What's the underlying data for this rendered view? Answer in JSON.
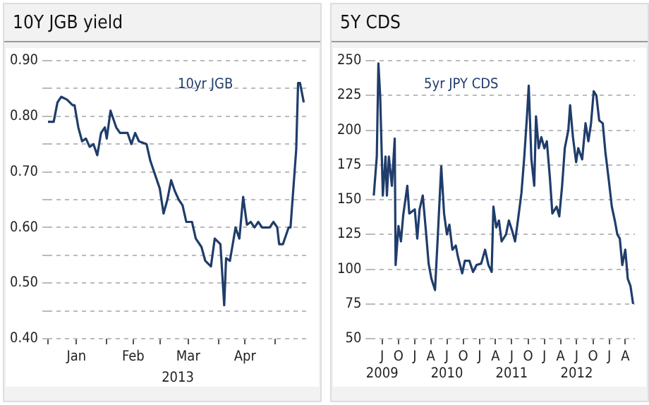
{
  "chart_data": [
    {
      "type": "line",
      "title": "10Y JGB yield",
      "xlabel": "2013",
      "grid": "y",
      "marker": "none",
      "line_style": "solid",
      "xlim": [
        "2013-01-01",
        "2013-05-18"
      ],
      "xticks": [
        {
          "value": "2013-01-01",
          "label": null
        },
        {
          "value": "2013-01-16",
          "label": "Jan"
        },
        {
          "value": "2013-02-01",
          "label": null
        },
        {
          "value": "2013-02-15",
          "label": "Feb"
        },
        {
          "value": "2013-03-01",
          "label": null
        },
        {
          "value": "2013-03-16",
          "label": "Mar"
        },
        {
          "value": "2013-04-01",
          "label": null
        },
        {
          "value": "2013-04-15",
          "label": "Apr"
        },
        {
          "value": "2013-05-01",
          "label": null
        }
      ],
      "ylim": [
        0.4,
        0.9
      ],
      "yticks": [
        {
          "value": 0.4,
          "label": "0.40"
        },
        {
          "value": 0.45,
          "label": null
        },
        {
          "value": 0.5,
          "label": "0.50"
        },
        {
          "value": 0.55,
          "label": null
        },
        {
          "value": 0.6,
          "label": "0.60"
        },
        {
          "value": 0.65,
          "label": null
        },
        {
          "value": 0.7,
          "label": "0.70"
        },
        {
          "value": 0.75,
          "label": null
        },
        {
          "value": 0.8,
          "label": "0.80"
        },
        {
          "value": 0.85,
          "label": null
        },
        {
          "value": 0.9,
          "label": "0.90"
        }
      ],
      "x": [
        "2013-01-01",
        "2013-01-04",
        "2013-01-06",
        "2013-01-08",
        "2013-01-11",
        "2013-01-14",
        "2013-01-15",
        "2013-01-17",
        "2013-01-19",
        "2013-01-21",
        "2013-01-23",
        "2013-01-25",
        "2013-01-27",
        "2013-01-29",
        "2013-01-31",
        "2013-02-01",
        "2013-02-03",
        "2013-02-06",
        "2013-02-08",
        "2013-02-12",
        "2013-02-14",
        "2013-02-16",
        "2013-02-18",
        "2013-02-22",
        "2013-02-24",
        "2013-02-28",
        "2013-03-01",
        "2013-03-03",
        "2013-03-05",
        "2013-03-07",
        "2013-03-09",
        "2013-03-11",
        "2013-03-13",
        "2013-03-15",
        "2013-03-18",
        "2013-03-20",
        "2013-03-23",
        "2013-03-25",
        "2013-03-28",
        "2013-03-30",
        "2013-04-02",
        "2013-04-04",
        "2013-04-05",
        "2013-04-07",
        "2013-04-10",
        "2013-04-12",
        "2013-04-14",
        "2013-04-16",
        "2013-04-18",
        "2013-04-20",
        "2013-04-22",
        "2013-04-24",
        "2013-04-26",
        "2013-04-28",
        "2013-04-30",
        "2013-05-02",
        "2013-05-03",
        "2013-05-05",
        "2013-05-08",
        "2013-05-09",
        "2013-05-12",
        "2013-05-13",
        "2013-05-14",
        "2013-05-16"
      ],
      "series": [
        {
          "name": "10yr JGB",
          "color": "#1f3d6b",
          "values": [
            0.79,
            0.79,
            0.825,
            0.835,
            0.83,
            0.82,
            0.82,
            0.78,
            0.755,
            0.76,
            0.745,
            0.75,
            0.73,
            0.77,
            0.78,
            0.76,
            0.81,
            0.78,
            0.77,
            0.77,
            0.75,
            0.77,
            0.755,
            0.75,
            0.72,
            0.68,
            0.67,
            0.625,
            0.65,
            0.685,
            0.665,
            0.65,
            0.64,
            0.61,
            0.61,
            0.58,
            0.565,
            0.54,
            0.53,
            0.58,
            0.57,
            0.46,
            0.545,
            0.54,
            0.6,
            0.58,
            0.655,
            0.605,
            0.61,
            0.6,
            0.61,
            0.6,
            0.6,
            0.6,
            0.61,
            0.6,
            0.57,
            0.57,
            0.6,
            0.6,
            0.74,
            0.86,
            0.86,
            0.825
          ]
        }
      ]
    },
    {
      "type": "line",
      "title": "5Y CDS",
      "grid": "y",
      "marker": "none",
      "line_style": "solid",
      "xlim": [
        "2009-05-01",
        "2013-05-25"
      ],
      "xticks": [
        {
          "value": "2009-07-01",
          "label": "J\n2009"
        },
        {
          "value": "2009-10-01",
          "label": "O"
        },
        {
          "value": "2010-01-01",
          "label": "J"
        },
        {
          "value": "2010-04-01",
          "label": "A"
        },
        {
          "value": "2010-07-01",
          "label": "J\n2010"
        },
        {
          "value": "2010-10-01",
          "label": "O"
        },
        {
          "value": "2011-01-01",
          "label": "J"
        },
        {
          "value": "2011-04-01",
          "label": "A"
        },
        {
          "value": "2011-07-01",
          "label": "J\n2011"
        },
        {
          "value": "2011-10-01",
          "label": "O"
        },
        {
          "value": "2012-01-01",
          "label": "J"
        },
        {
          "value": "2012-04-01",
          "label": "A"
        },
        {
          "value": "2012-07-01",
          "label": "J\n2012"
        },
        {
          "value": "2012-10-01",
          "label": "O"
        },
        {
          "value": "2013-01-01",
          "label": "J"
        },
        {
          "value": "2013-04-01",
          "label": "A"
        }
      ],
      "ylim": [
        50,
        250
      ],
      "yticks": [
        50,
        75,
        100,
        125,
        150,
        175,
        200,
        225,
        250
      ],
      "x": [
        "2009-05-15",
        "2009-06-01",
        "2009-06-10",
        "2009-06-20",
        "2009-07-05",
        "2009-07-20",
        "2009-07-28",
        "2009-08-08",
        "2009-08-25",
        "2009-09-10",
        "2009-09-15",
        "2009-10-01",
        "2009-10-15",
        "2009-10-28",
        "2009-11-20",
        "2009-12-01",
        "2010-01-01",
        "2010-01-15",
        "2010-01-28",
        "2010-02-15",
        "2010-03-05",
        "2010-03-20",
        "2010-04-05",
        "2010-04-25",
        "2010-05-10",
        "2010-05-30",
        "2010-06-15",
        "2010-07-01",
        "2010-07-15",
        "2010-08-01",
        "2010-08-20",
        "2010-09-01",
        "2010-09-25",
        "2010-10-10",
        "2010-11-05",
        "2010-11-25",
        "2010-12-15",
        "2011-01-10",
        "2011-02-01",
        "2011-02-20",
        "2011-03-10",
        "2011-03-20",
        "2011-04-05",
        "2011-04-20",
        "2011-05-05",
        "2011-05-30",
        "2011-06-15",
        "2011-07-05",
        "2011-07-20",
        "2011-08-05",
        "2011-08-25",
        "2011-09-10",
        "2011-09-25",
        "2011-10-05",
        "2011-10-20",
        "2011-11-05",
        "2011-11-15",
        "2011-11-30",
        "2011-12-15",
        "2012-01-01",
        "2012-01-15",
        "2012-02-01",
        "2012-02-15",
        "2012-03-10",
        "2012-03-25",
        "2012-04-10",
        "2012-04-25",
        "2012-05-15",
        "2012-05-25",
        "2012-06-10",
        "2012-06-28",
        "2012-07-10",
        "2012-08-01",
        "2012-08-20",
        "2012-09-05",
        "2012-09-20",
        "2012-10-05",
        "2012-10-20",
        "2012-11-05",
        "2012-11-25",
        "2012-12-10",
        "2012-12-30",
        "2013-01-15",
        "2013-02-01",
        "2013-02-15",
        "2013-03-01",
        "2013-03-15",
        "2013-04-01",
        "2013-04-15",
        "2013-04-30",
        "2013-05-15"
      ],
      "series": [
        {
          "name": "5yr JPY CDS",
          "color": "#1f3d6b",
          "values": [
            153,
            181,
            248,
            225,
            153,
            181,
            153,
            181,
            160,
            194,
            103,
            131,
            120,
            139,
            160,
            140,
            143,
            122,
            143,
            153,
            127,
            104,
            93,
            85,
            122,
            174,
            140,
            125,
            132,
            114,
            117,
            109,
            97,
            106,
            106,
            98,
            103,
            104,
            114,
            103,
            98,
            145,
            130,
            135,
            120,
            125,
            135,
            127,
            120,
            135,
            155,
            181,
            210,
            232,
            179,
            160,
            210,
            187,
            195,
            187,
            192,
            166,
            140,
            145,
            138,
            160,
            187,
            200,
            218,
            195,
            177,
            187,
            179,
            205,
            192,
            205,
            228,
            225,
            207,
            205,
            184,
            163,
            145,
            135,
            125,
            122,
            103,
            114,
            93,
            88,
            75
          ]
        }
      ]
    }
  ]
}
